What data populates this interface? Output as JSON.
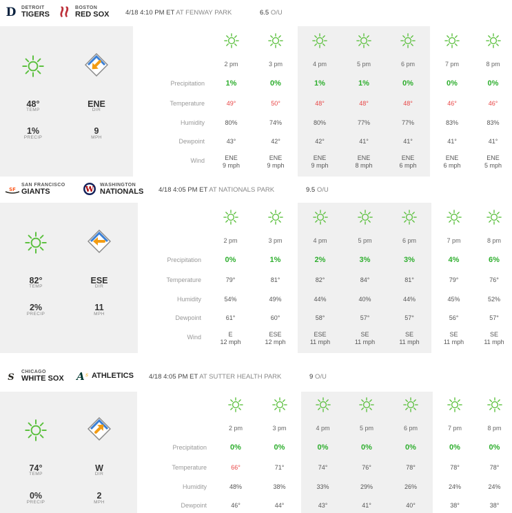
{
  "games": [
    {
      "away": {
        "city": "DETROIT",
        "name": "TIGERS",
        "logo": "tigers-logo",
        "color": "#0c2340"
      },
      "home": {
        "city": "BOSTON",
        "name": "RED SOX",
        "logo": "red-sox-logo",
        "color": "#bd3039"
      },
      "time": "4/18 4:10 PM ET",
      "venue": "AT FENWAY PARK",
      "ou_value": "6.5",
      "ou_label": "O/U",
      "summary": {
        "condition_icon": "sun-icon",
        "temp": "48°",
        "temp_label": "TEMP",
        "precip": "1%",
        "precip_label": "PRECIP",
        "wind_dir": "ENE",
        "dir_label": "DIR",
        "wind_speed": "9",
        "mph_label": "MPH",
        "arrow_direction": "down-left"
      },
      "row_labels": [
        "Precipitation",
        "Temperature",
        "Humidity",
        "Dewpoint",
        "Wind"
      ],
      "hours": [
        {
          "time": "2 pm",
          "precip": "1%",
          "temp": "49°",
          "temp_hot": true,
          "humidity": "80%",
          "dew": "43°",
          "wind_dir": "ENE",
          "wind_speed": "9 mph"
        },
        {
          "time": "3 pm",
          "precip": "0%",
          "temp": "50°",
          "temp_hot": true,
          "humidity": "74%",
          "dew": "42°",
          "wind_dir": "ENE",
          "wind_speed": "9 mph"
        },
        {
          "time": "4 pm",
          "precip": "1%",
          "temp": "48°",
          "temp_hot": true,
          "humidity": "80%",
          "dew": "42°",
          "wind_dir": "ENE",
          "wind_speed": "9 mph"
        },
        {
          "time": "5 pm",
          "precip": "1%",
          "temp": "48°",
          "temp_hot": true,
          "humidity": "77%",
          "dew": "41°",
          "wind_dir": "ENE",
          "wind_speed": "8 mph"
        },
        {
          "time": "6 pm",
          "precip": "0%",
          "temp": "48°",
          "temp_hot": true,
          "humidity": "77%",
          "dew": "41°",
          "wind_dir": "ENE",
          "wind_speed": "6 mph"
        },
        {
          "time": "7 pm",
          "precip": "0%",
          "temp": "46°",
          "temp_hot": true,
          "humidity": "83%",
          "dew": "41°",
          "wind_dir": "ENE",
          "wind_speed": "6 mph"
        },
        {
          "time": "8 pm",
          "precip": "0%",
          "temp": "46°",
          "temp_hot": true,
          "humidity": "83%",
          "dew": "41°",
          "wind_dir": "ENE",
          "wind_speed": "5 mph"
        }
      ]
    },
    {
      "away": {
        "city": "SAN FRANCISCO",
        "name": "GIANTS",
        "logo": "giants-logo",
        "color": "#fd5a1e"
      },
      "home": {
        "city": "WASHINGTON",
        "name": "NATIONALS",
        "logo": "nationals-logo",
        "color": "#ab0003"
      },
      "time": "4/18 4:05 PM ET",
      "venue": "AT NATIONALS PARK",
      "ou_value": "9.5",
      "ou_label": "O/U",
      "summary": {
        "condition_icon": "sun-icon",
        "temp": "82°",
        "temp_label": "TEMP",
        "precip": "2%",
        "precip_label": "PRECIP",
        "wind_dir": "ESE",
        "dir_label": "DIR",
        "wind_speed": "11",
        "mph_label": "MPH",
        "arrow_direction": "left"
      },
      "row_labels": [
        "Precipitation",
        "Temperature",
        "Humidity",
        "Dewpoint",
        "Wind"
      ],
      "hours": [
        {
          "time": "2 pm",
          "precip": "0%",
          "temp": "79°",
          "temp_hot": false,
          "humidity": "54%",
          "dew": "61°",
          "wind_dir": "E",
          "wind_speed": "12 mph"
        },
        {
          "time": "3 pm",
          "precip": "1%",
          "temp": "81°",
          "temp_hot": false,
          "humidity": "49%",
          "dew": "60°",
          "wind_dir": "ESE",
          "wind_speed": "12 mph"
        },
        {
          "time": "4 pm",
          "precip": "2%",
          "temp": "82°",
          "temp_hot": false,
          "humidity": "44%",
          "dew": "58°",
          "wind_dir": "ESE",
          "wind_speed": "11 mph"
        },
        {
          "time": "5 pm",
          "precip": "3%",
          "temp": "84°",
          "temp_hot": false,
          "humidity": "40%",
          "dew": "57°",
          "wind_dir": "SE",
          "wind_speed": "11 mph"
        },
        {
          "time": "6 pm",
          "precip": "3%",
          "temp": "81°",
          "temp_hot": false,
          "humidity": "44%",
          "dew": "57°",
          "wind_dir": "SE",
          "wind_speed": "11 mph"
        },
        {
          "time": "7 pm",
          "precip": "4%",
          "temp": "79°",
          "temp_hot": false,
          "humidity": "45%",
          "dew": "56°",
          "wind_dir": "SE",
          "wind_speed": "11 mph"
        },
        {
          "time": "8 pm",
          "precip": "6%",
          "temp": "76°",
          "temp_hot": false,
          "humidity": "52%",
          "dew": "57°",
          "wind_dir": "SE",
          "wind_speed": "11 mph"
        }
      ]
    },
    {
      "away": {
        "city": "CHICAGO",
        "name": "WHITE SOX",
        "logo": "white-sox-logo",
        "color": "#27251f"
      },
      "home": {
        "city": "",
        "name": "ATHLETICS",
        "logo": "athletics-logo",
        "color": "#003831"
      },
      "time": "4/18 4:05 PM ET",
      "venue": "AT SUTTER HEALTH PARK",
      "ou_value": "9",
      "ou_label": "O/U",
      "summary": {
        "condition_icon": "sun-icon",
        "temp": "74°",
        "temp_label": "TEMP",
        "precip": "0%",
        "precip_label": "PRECIP",
        "wind_dir": "W",
        "dir_label": "DIR",
        "wind_speed": "2",
        "mph_label": "MPH",
        "arrow_direction": "up-right"
      },
      "row_labels": [
        "Precipitation",
        "Temperature",
        "Humidity",
        "Dewpoint"
      ],
      "hours": [
        {
          "time": "2 pm",
          "precip": "0%",
          "temp": "66°",
          "temp_hot": true,
          "humidity": "48%",
          "dew": "46°"
        },
        {
          "time": "3 pm",
          "precip": "0%",
          "temp": "71°",
          "temp_hot": false,
          "humidity": "38%",
          "dew": "44°"
        },
        {
          "time": "4 pm",
          "precip": "0%",
          "temp": "74°",
          "temp_hot": false,
          "humidity": "33%",
          "dew": "43°"
        },
        {
          "time": "5 pm",
          "precip": "0%",
          "temp": "76°",
          "temp_hot": false,
          "humidity": "29%",
          "dew": "41°"
        },
        {
          "time": "6 pm",
          "precip": "0%",
          "temp": "78°",
          "temp_hot": false,
          "humidity": "26%",
          "dew": "40°"
        },
        {
          "time": "7 pm",
          "precip": "0%",
          "temp": "78°",
          "temp_hot": false,
          "humidity": "24%",
          "dew": "38°"
        },
        {
          "time": "8 pm",
          "precip": "0%",
          "temp": "78°",
          "temp_hot": false,
          "humidity": "24%",
          "dew": "38°"
        }
      ]
    }
  ],
  "colors": {
    "sun": "#5cc03f",
    "precip": "#2eae2e",
    "hot_temp": "#e84545",
    "shade": "#f0f0f0",
    "arrow": "#f39c12",
    "diamond_blue": "#3a7fd5"
  }
}
